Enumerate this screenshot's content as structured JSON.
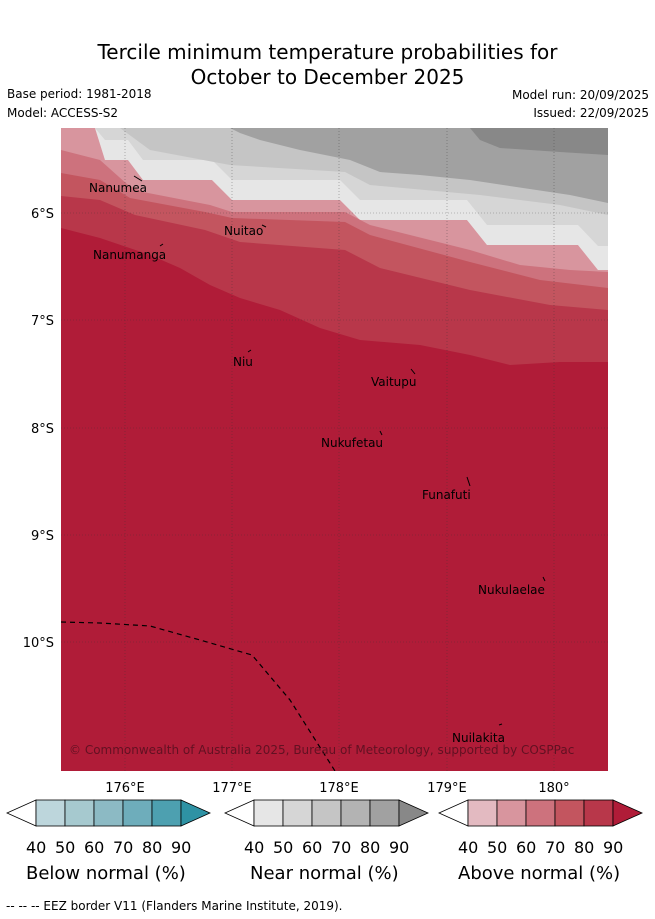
{
  "header": {
    "title_line1": "Tercile minimum temperature probabilities for",
    "title_line2": "October to December 2025",
    "base_period": "Base period: 1981-2018",
    "model": "Model: ACCESS-S2",
    "model_run": "Model run: 20/09/2025",
    "issued": "Issued: 22/09/2025"
  },
  "map": {
    "x_ticks": [
      "176°E",
      "177°E",
      "178°E",
      "179°E",
      "180°"
    ],
    "y_ticks": [
      "6°S",
      "7°S",
      "8°S",
      "9°S",
      "10°S"
    ],
    "places": [
      "Nanumea",
      "Nanumanga",
      "Nuitao",
      "Niu",
      "Vaitupu",
      "Nukufetau",
      "Funafuti",
      "Nukulaelae",
      "Nuilakita"
    ],
    "copyright": "© Commonwealth of Australia 2025, Bureau of Meteorology, supported by COSPPac",
    "colors": {
      "above": [
        "#e3bac1",
        "#d8959e",
        "#cd727d",
        "#c3555f",
        "#b8374a",
        "#b01c38"
      ],
      "near": [
        "#e6e6e6",
        "#d6d6d6",
        "#c5c5c5",
        "#b3b3b3",
        "#a1a1a1",
        "#888888"
      ],
      "below": [
        "#bdd6dc",
        "#a6c9cf",
        "#8cbac4",
        "#6eadbb",
        "#4da0b0",
        "#2e92a4"
      ]
    }
  },
  "colorbars": [
    {
      "title": "Below normal (%)",
      "ticks": [
        "40",
        "50",
        "60",
        "70",
        "80",
        "90"
      ]
    },
    {
      "title": "Near normal (%)",
      "ticks": [
        "40",
        "50",
        "60",
        "70",
        "80",
        "90"
      ]
    },
    {
      "title": "Above normal (%)",
      "ticks": [
        "40",
        "50",
        "60",
        "70",
        "80",
        "90"
      ]
    }
  ],
  "footer": "-- -- -- EEZ border V11 (Flanders Marine Institute, 2019)."
}
